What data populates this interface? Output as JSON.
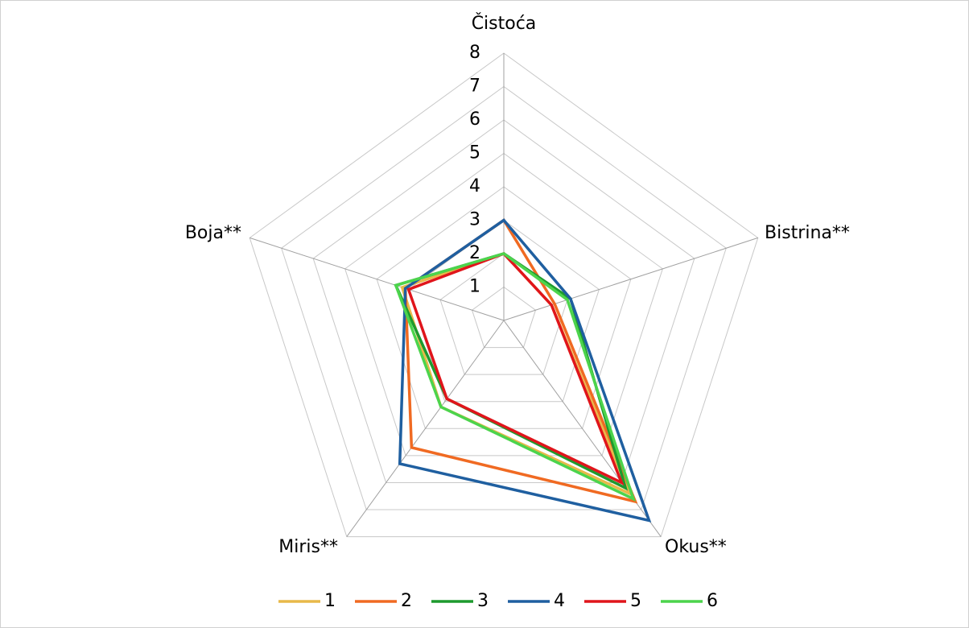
{
  "chart_data": {
    "type": "radar",
    "categories": [
      "Čistoća",
      "Bistrina**",
      "Okus**",
      "Miris**",
      "Boja**"
    ],
    "rlim": [
      0,
      8
    ],
    "rticks": [
      1,
      2,
      3,
      4,
      5,
      6,
      7,
      8
    ],
    "series": [
      {
        "name": "1",
        "color": "#e8b94a",
        "values": [
          2,
          1.5,
          6.4,
          3.2,
          3.2
        ]
      },
      {
        "name": "2",
        "color": "#f06a22",
        "values": [
          3,
          1.6,
          6.7,
          4.7,
          3.1
        ]
      },
      {
        "name": "3",
        "color": "#1e9a2e",
        "values": [
          2,
          2.1,
          6.2,
          2.9,
          3.4
        ]
      },
      {
        "name": "4",
        "color": "#1f5fa0",
        "values": [
          3,
          2.1,
          7.4,
          5.3,
          3.1
        ]
      },
      {
        "name": "5",
        "color": "#e0151b",
        "values": [
          2,
          1.5,
          6.0,
          2.9,
          3.0
        ]
      },
      {
        "name": "6",
        "color": "#4cd44c",
        "values": [
          2,
          2.0,
          6.6,
          3.2,
          3.4
        ]
      }
    ]
  }
}
